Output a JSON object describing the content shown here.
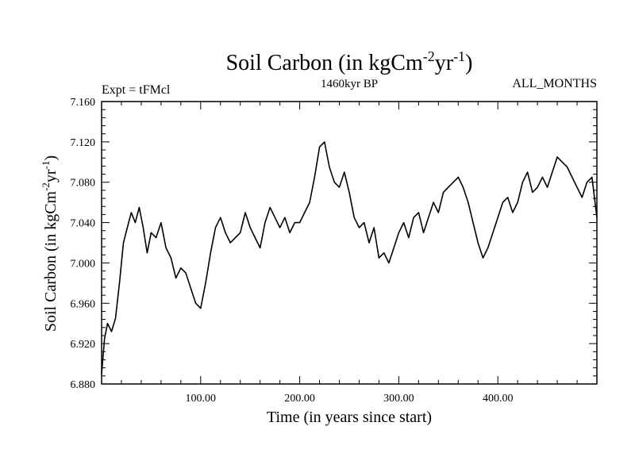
{
  "chart_data": {
    "type": "line",
    "title": "Soil Carbon (in kgCm",
    "title_sup1": "-2",
    "title_mid": "yr",
    "title_sup2": "-1",
    "title_end": ")",
    "subtitle": "1460kyr BP",
    "left_label": "Expt = tFMcl",
    "right_label": "ALL_MONTHS",
    "xlabel": "Time (in years since start)",
    "ylabel": "Soil Carbon (in kgCm",
    "ylabel_sup1": "-2",
    "ylabel_mid": "yr",
    "ylabel_sup2": "-1",
    "ylabel_end": ")",
    "xlim": [
      0,
      500
    ],
    "ylim": [
      6.88,
      7.16
    ],
    "xticks": [
      100,
      200,
      300,
      400
    ],
    "xtick_labels": [
      "100.00",
      "200.00",
      "300.00",
      "400.00"
    ],
    "yticks": [
      6.88,
      6.92,
      6.96,
      7.0,
      7.04,
      7.08,
      7.12,
      7.16
    ],
    "ytick_labels": [
      "6.880",
      "6.920",
      "6.960",
      "7.000",
      "7.040",
      "7.080",
      "7.120",
      "7.160"
    ],
    "line_color": "#000000",
    "series": [
      {
        "name": "Soil Carbon",
        "x": [
          0,
          3,
          6,
          10,
          14,
          18,
          22,
          26,
          30,
          34,
          38,
          42,
          46,
          50,
          55,
          60,
          65,
          70,
          75,
          80,
          85,
          90,
          95,
          100,
          105,
          110,
          115,
          120,
          125,
          130,
          135,
          140,
          145,
          150,
          155,
          160,
          165,
          170,
          175,
          180,
          185,
          190,
          195,
          200,
          205,
          210,
          215,
          220,
          225,
          230,
          235,
          240,
          245,
          250,
          255,
          260,
          265,
          270,
          275,
          280,
          285,
          290,
          295,
          300,
          305,
          310,
          315,
          320,
          325,
          330,
          335,
          340,
          345,
          350,
          355,
          360,
          365,
          370,
          375,
          380,
          385,
          390,
          395,
          400,
          405,
          410,
          415,
          420,
          425,
          430,
          435,
          440,
          445,
          450,
          455,
          460,
          465,
          470,
          475,
          480,
          485,
          490,
          495,
          500
        ],
        "values": [
          6.89,
          6.925,
          6.94,
          6.932,
          6.945,
          6.98,
          7.02,
          7.035,
          7.05,
          7.04,
          7.055,
          7.035,
          7.01,
          7.03,
          7.025,
          7.04,
          7.015,
          7.005,
          6.985,
          6.995,
          6.99,
          6.975,
          6.96,
          6.955,
          6.98,
          7.01,
          7.035,
          7.045,
          7.03,
          7.02,
          7.025,
          7.03,
          7.05,
          7.035,
          7.025,
          7.015,
          7.04,
          7.055,
          7.045,
          7.035,
          7.045,
          7.03,
          7.04,
          7.04,
          7.05,
          7.06,
          7.085,
          7.115,
          7.12,
          7.095,
          7.08,
          7.075,
          7.09,
          7.07,
          7.045,
          7.035,
          7.04,
          7.02,
          7.035,
          7.005,
          7.01,
          7.0,
          7.015,
          7.03,
          7.04,
          7.025,
          7.045,
          7.05,
          7.03,
          7.045,
          7.06,
          7.05,
          7.07,
          7.075,
          7.08,
          7.085,
          7.075,
          7.06,
          7.04,
          7.02,
          7.005,
          7.015,
          7.03,
          7.045,
          7.06,
          7.065,
          7.05,
          7.06,
          7.08,
          7.09,
          7.07,
          7.075,
          7.085,
          7.075,
          7.09,
          7.105,
          7.1,
          7.095,
          7.085,
          7.075,
          7.065,
          7.08,
          7.085,
          7.045
        ]
      }
    ]
  }
}
